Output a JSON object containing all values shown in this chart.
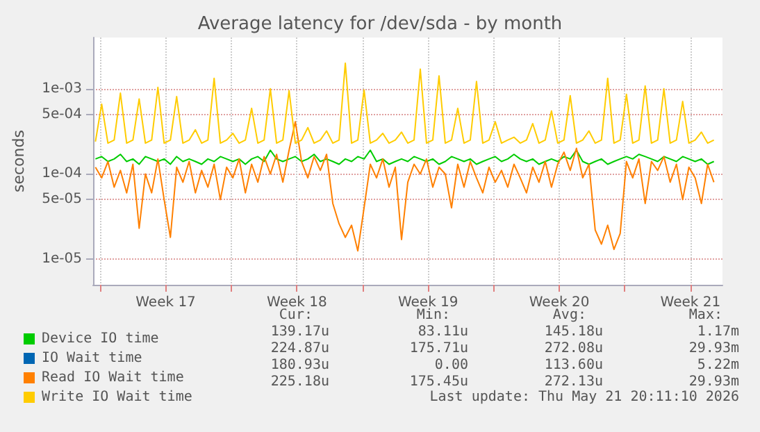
{
  "chart_data": {
    "type": "line",
    "title": "Average latency for /dev/sda - by month",
    "ylabel": "seconds",
    "x": [
      "2026-04-19T18:00",
      "2026-04-20T02:00",
      "2026-04-20T10:00",
      "2026-04-20T18:00",
      "2026-04-21T02:00",
      "2026-04-21T10:00",
      "2026-04-21T18:00",
      "2026-04-22T02:00",
      "2026-04-22T10:00",
      "2026-04-22T18:00",
      "2026-04-23T02:00",
      "2026-04-23T10:00",
      "2026-04-23T18:00",
      "2026-04-24T02:00",
      "2026-04-24T10:00",
      "2026-04-24T18:00",
      "2026-04-25T02:00",
      "2026-04-25T10:00",
      "2026-04-25T18:00",
      "2026-04-26T02:00",
      "2026-04-26T10:00",
      "2026-04-26T18:00",
      "2026-04-27T02:00",
      "2026-04-27T10:00",
      "2026-04-27T18:00",
      "2026-04-28T02:00",
      "2026-04-28T10:00",
      "2026-04-28T18:00",
      "2026-04-29T02:00",
      "2026-04-29T10:00",
      "2026-04-29T18:00",
      "2026-04-30T02:00",
      "2026-04-30T10:00",
      "2026-04-30T18:00",
      "2026-05-01T02:00",
      "2026-05-01T10:00",
      "2026-05-01T18:00",
      "2026-05-02T02:00",
      "2026-05-02T10:00",
      "2026-05-02T18:00",
      "2026-05-03T02:00",
      "2026-05-03T10:00",
      "2026-05-03T18:00",
      "2026-05-04T02:00",
      "2026-05-04T10:00",
      "2026-05-04T18:00",
      "2026-05-05T02:00",
      "2026-05-05T10:00",
      "2026-05-05T18:00",
      "2026-05-06T02:00",
      "2026-05-06T10:00",
      "2026-05-06T18:00",
      "2026-05-07T02:00",
      "2026-05-07T10:00",
      "2026-05-07T18:00",
      "2026-05-08T02:00",
      "2026-05-08T10:00",
      "2026-05-08T18:00",
      "2026-05-09T02:00",
      "2026-05-09T10:00",
      "2026-05-09T18:00",
      "2026-05-10T02:00",
      "2026-05-10T10:00",
      "2026-05-10T18:00",
      "2026-05-11T02:00",
      "2026-05-11T10:00",
      "2026-05-11T18:00",
      "2026-05-12T02:00",
      "2026-05-12T10:00",
      "2026-05-12T18:00",
      "2026-05-13T02:00",
      "2026-05-13T10:00",
      "2026-05-13T18:00",
      "2026-05-14T02:00",
      "2026-05-14T10:00",
      "2026-05-14T18:00",
      "2026-05-15T02:00",
      "2026-05-15T10:00",
      "2026-05-15T18:00",
      "2026-05-16T02:00",
      "2026-05-16T10:00",
      "2026-05-16T18:00",
      "2026-05-17T02:00",
      "2026-05-17T10:00",
      "2026-05-17T18:00",
      "2026-05-18T02:00",
      "2026-05-18T10:00",
      "2026-05-18T18:00",
      "2026-05-19T02:00",
      "2026-05-19T10:00",
      "2026-05-19T18:00",
      "2026-05-20T02:00",
      "2026-05-20T10:00",
      "2026-05-20T18:00",
      "2026-05-21T02:00",
      "2026-05-21T10:00",
      "2026-05-21T18:00",
      "2026-05-22T02:00",
      "2026-05-22T10:00",
      "2026-05-22T18:00"
    ],
    "series": [
      {
        "name": "Device IO time",
        "color": "#00cc00",
        "values": [
          0.00015,
          0.00016,
          0.00014,
          0.00015,
          0.00017,
          0.00014,
          0.00015,
          0.00013,
          0.00016,
          0.00015,
          0.00014,
          0.00015,
          0.00013,
          0.00016,
          0.00014,
          0.00015,
          0.00014,
          0.00013,
          0.00015,
          0.00014,
          0.00016,
          0.00015,
          0.00014,
          0.00015,
          0.00013,
          0.00015,
          0.00016,
          0.00014,
          0.00019,
          0.00015,
          0.00014,
          0.00015,
          0.00016,
          0.00014,
          0.00015,
          0.00017,
          0.00014,
          0.00015,
          0.00014,
          0.00013,
          0.00015,
          0.00014,
          0.00016,
          0.00015,
          0.00019,
          0.00014,
          0.00015,
          0.00013,
          0.00014,
          0.00015,
          0.00014,
          0.00016,
          0.00015,
          0.00014,
          0.00015,
          0.00013,
          0.00014,
          0.00016,
          0.00015,
          0.00014,
          0.00015,
          0.00013,
          0.00014,
          0.00015,
          0.00016,
          0.00014,
          0.00015,
          0.00017,
          0.00015,
          0.00014,
          0.00015,
          0.00013,
          0.00014,
          0.00015,
          0.00014,
          0.00016,
          0.00015,
          0.00019,
          0.00014,
          0.00013,
          0.00014,
          0.00015,
          0.00013,
          0.00014,
          0.00015,
          0.00016,
          0.00015,
          0.00017,
          0.00016,
          0.00015,
          0.00014,
          0.00016,
          0.00015,
          0.00014,
          0.00016,
          0.00015,
          0.00014,
          0.00015,
          0.00013,
          0.00014
        ]
      },
      {
        "name": "IO Wait time",
        "color": "#0066b3",
        "values": [
          null,
          null,
          null,
          null,
          null,
          null,
          null,
          null,
          null,
          null,
          null,
          null,
          null,
          null,
          null,
          null,
          null,
          null,
          null,
          null,
          null,
          null,
          null,
          null,
          null,
          null,
          null,
          null,
          null,
          null,
          null,
          null,
          null,
          null,
          null,
          null,
          null,
          null,
          null,
          null,
          null,
          null,
          null,
          null,
          null,
          null,
          null,
          null,
          null,
          null,
          null,
          null,
          null,
          null,
          null,
          null,
          null,
          null,
          null,
          null,
          null,
          null,
          null,
          null,
          null,
          null,
          null,
          null,
          null,
          null,
          null,
          null,
          null,
          null,
          null,
          null,
          null,
          null,
          null,
          null,
          null,
          null,
          null,
          null,
          null,
          null,
          null,
          null,
          null,
          null,
          null,
          null,
          null,
          null,
          null,
          null,
          null,
          null,
          null,
          null
        ]
      },
      {
        "name": "Read IO Wait time",
        "color": "#ff8000",
        "values": [
          0.00012,
          9e-05,
          0.00014,
          7e-05,
          0.00011,
          6e-05,
          0.00013,
          2.3e-05,
          0.0001,
          6e-05,
          0.00015,
          5e-05,
          1.8e-05,
          0.00012,
          8e-05,
          0.00014,
          6e-05,
          0.00011,
          7e-05,
          0.00013,
          5e-05,
          0.00012,
          9e-05,
          0.00015,
          6e-05,
          0.00013,
          8e-05,
          0.00016,
          0.0001,
          0.00017,
          8e-05,
          0.00019,
          0.00041,
          0.00014,
          9e-05,
          0.00016,
          0.00011,
          0.00017,
          4.5e-05,
          2.6e-05,
          1.8e-05,
          2.5e-05,
          1.25e-05,
          4e-05,
          0.00013,
          9e-05,
          0.00015,
          7e-05,
          0.00012,
          1.7e-05,
          8e-05,
          0.00013,
          0.0001,
          0.00015,
          7e-05,
          0.00012,
          0.0001,
          4e-05,
          0.00013,
          7e-05,
          0.00014,
          9e-05,
          6e-05,
          0.00012,
          8e-05,
          0.00011,
          7e-05,
          0.00013,
          9e-05,
          6e-05,
          0.00012,
          8e-05,
          0.00014,
          7e-05,
          0.00013,
          0.00018,
          0.00011,
          0.0002,
          9e-05,
          0.00013,
          2.2e-05,
          1.5e-05,
          2.5e-05,
          1.3e-05,
          2e-05,
          0.00014,
          9e-05,
          0.00015,
          4.5e-05,
          0.00014,
          0.00011,
          0.00016,
          8e-05,
          0.00013,
          5e-05,
          0.00012,
          9e-05,
          4.5e-05,
          0.00013,
          8e-05
        ]
      },
      {
        "name": "Write IO Wait time",
        "color": "#ffcc00",
        "values": [
          0.00024,
          0.00066,
          0.00023,
          0.00025,
          0.00089,
          0.00023,
          0.00025,
          0.00076,
          0.00023,
          0.00025,
          0.00104,
          0.00023,
          0.00025,
          0.00081,
          0.00023,
          0.00025,
          0.00033,
          0.00023,
          0.00025,
          0.00133,
          0.00023,
          0.00025,
          0.0003,
          0.00023,
          0.00025,
          0.00059,
          0.00023,
          0.00025,
          0.001,
          0.00023,
          0.00025,
          0.00095,
          0.00023,
          0.00025,
          0.00035,
          0.00023,
          0.00025,
          0.00032,
          0.00023,
          0.00025,
          0.002,
          0.00023,
          0.00025,
          0.00097,
          0.00023,
          0.00025,
          0.0003,
          0.00023,
          0.00025,
          0.00031,
          0.00023,
          0.00025,
          0.0017,
          0.00023,
          0.00025,
          0.00142,
          0.00023,
          0.00025,
          0.00059,
          0.00023,
          0.00025,
          0.00122,
          0.00023,
          0.00025,
          0.00041,
          0.00023,
          0.00025,
          0.00027,
          0.00023,
          0.00025,
          0.00039,
          0.00023,
          0.00025,
          0.00055,
          0.00023,
          0.00025,
          0.00083,
          0.00023,
          0.00025,
          0.00032,
          0.00023,
          0.00025,
          0.00133,
          0.00023,
          0.00025,
          0.00086,
          0.00023,
          0.00025,
          0.00108,
          0.00023,
          0.00025,
          0.001,
          0.00023,
          0.00025,
          0.00071,
          0.00023,
          0.00025,
          0.00031,
          0.00023,
          0.00025
        ]
      }
    ],
    "xlim": [
      "2026-04-19T15:00",
      "2026-05-23T05:00"
    ],
    "xticks": [
      {
        "value": "2026-04-20T00:00",
        "label": null
      },
      {
        "value": "2026-04-23T12:00",
        "label": "Week 17"
      },
      {
        "value": "2026-04-27T00:00",
        "label": null
      },
      {
        "value": "2026-04-30T12:00",
        "label": "Week 18"
      },
      {
        "value": "2026-05-04T00:00",
        "label": null
      },
      {
        "value": "2026-05-07T12:00",
        "label": "Week 19"
      },
      {
        "value": "2026-05-11T00:00",
        "label": null
      },
      {
        "value": "2026-05-14T12:00",
        "label": "Week 20"
      },
      {
        "value": "2026-05-18T00:00",
        "label": null
      },
      {
        "value": "2026-05-21T12:00",
        "label": "Week 21"
      }
    ],
    "ylim": [
      5e-06,
      0.004
    ],
    "yticks": [
      {
        "value": 1e-05,
        "label": "1e-05"
      },
      {
        "value": 5e-05,
        "label": "5e-05"
      },
      {
        "value": 0.0001,
        "label": "1e-04"
      },
      {
        "value": 0.0005,
        "label": "5e-04"
      },
      {
        "value": 0.001,
        "label": "1e-03"
      }
    ],
    "log": true,
    "grid": true,
    "legend": "bottom",
    "marker": "none",
    "annotations": [
      "Cur:",
      "Min:",
      "Avg:",
      "Max:",
      "139.17u",
      "83.11u",
      "145.18u",
      "1.17m",
      "224.87u",
      "175.71u",
      "272.08u",
      "29.93m",
      "180.93u",
      "0.00",
      "113.60u",
      "5.22m",
      "225.18u",
      "175.45u",
      "272.13u",
      "29.93m",
      "Last update: Thu May 21 20:11:10 2026"
    ]
  }
}
